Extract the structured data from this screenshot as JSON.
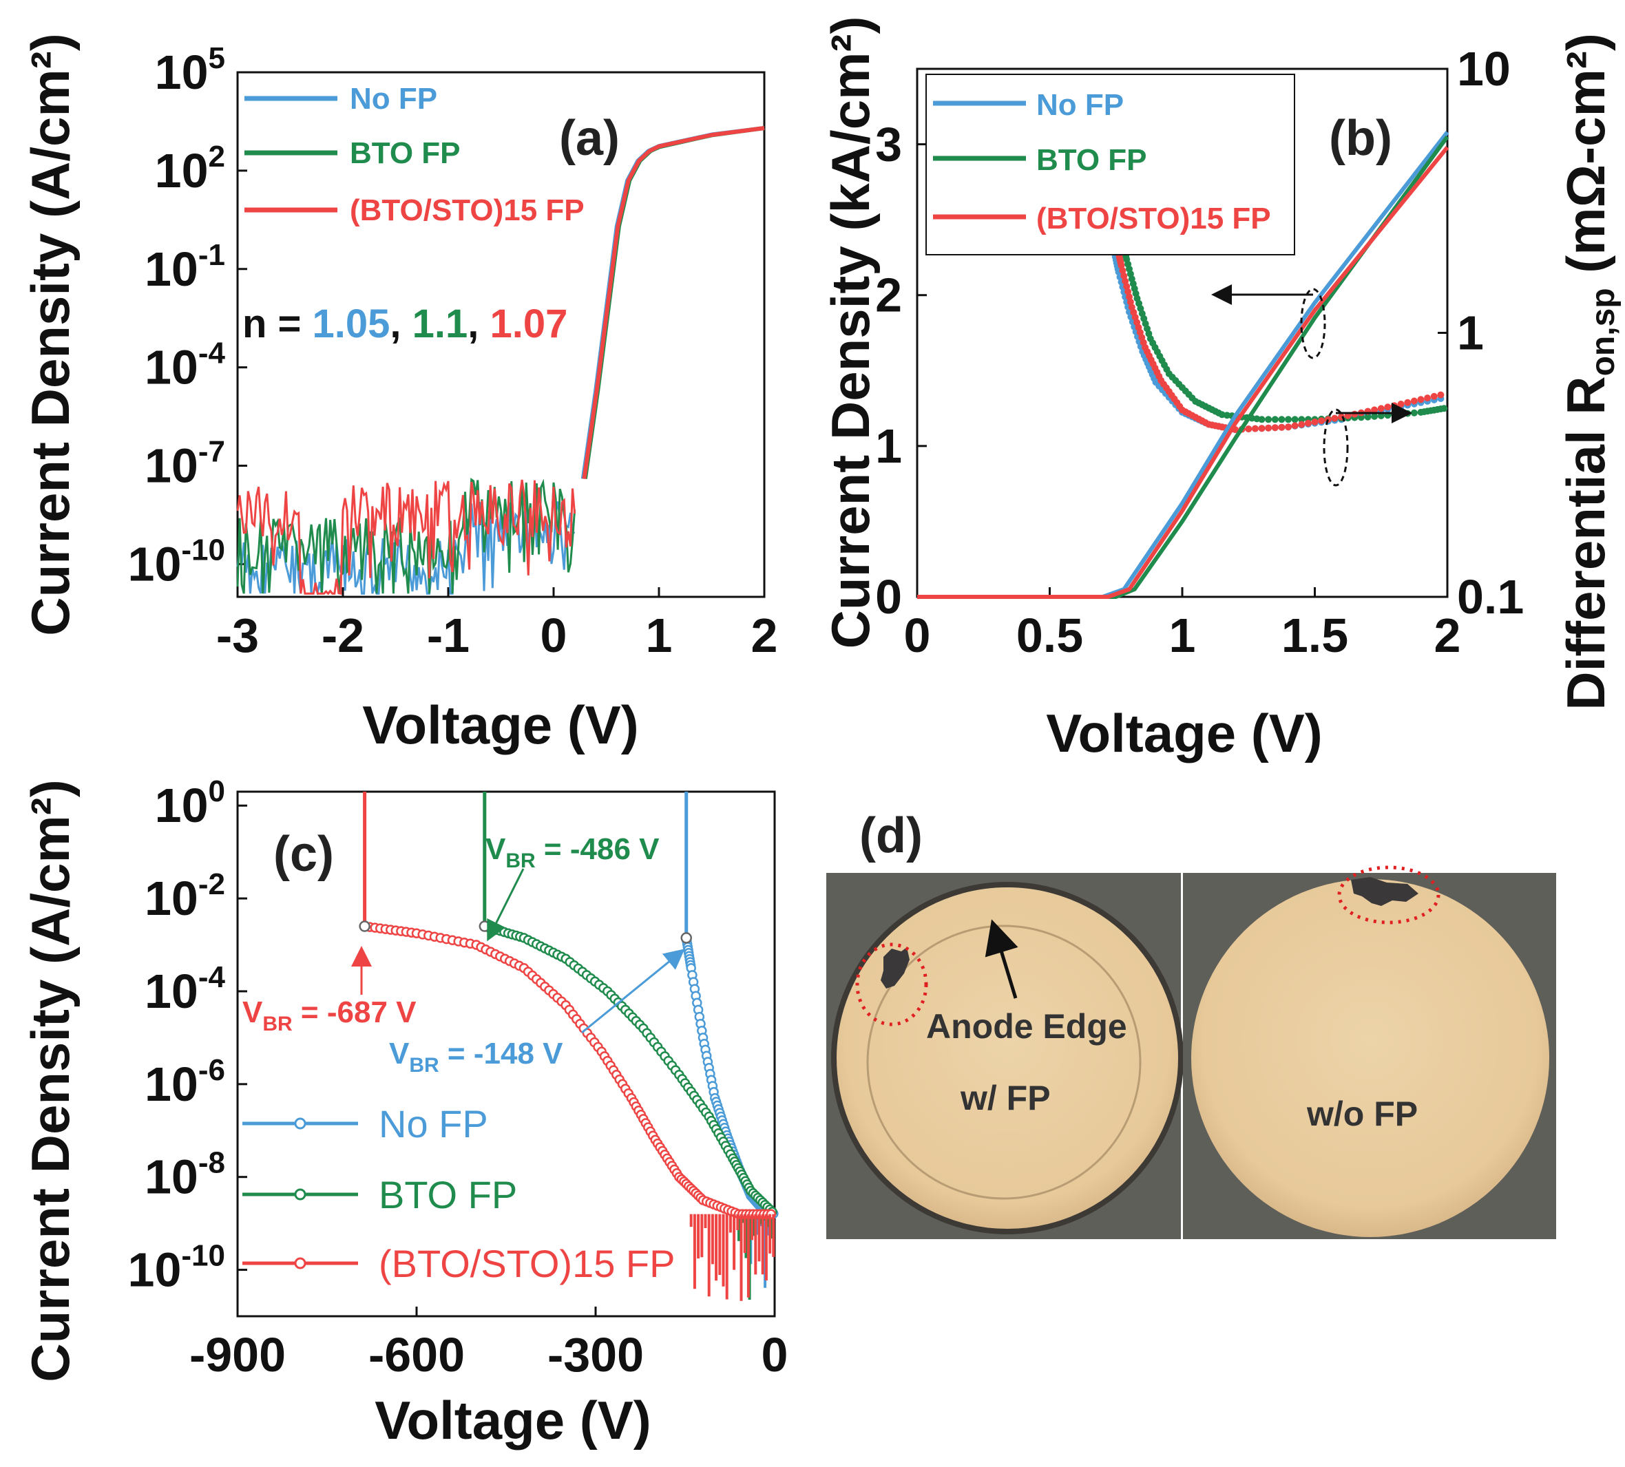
{
  "colors": {
    "blue": "#4a9bd8",
    "green": "#1f8b4c",
    "red": "#ef4444",
    "dark": "#111111"
  },
  "chart_data": [
    {
      "id": "a",
      "type": "line",
      "panel_label": "(a)",
      "xlabel": "Voltage (V)",
      "ylabel": "Current Density (A/cm²)",
      "xlim": [
        -3,
        2
      ],
      "yscale": "log",
      "ylim_exp": [
        -11,
        5
      ],
      "xticks": [
        "-3",
        "-2",
        "-1",
        "0",
        "1",
        "2"
      ],
      "yticks": [
        "10^5",
        "10^2",
        "10^-1",
        "10^-4",
        "10^-7",
        "10^-10"
      ],
      "legend": [
        "No FP",
        "BTO FP",
        "(BTO/STO)15 FP"
      ],
      "ideality_label": "n = ",
      "ideality": [
        "1.05",
        "1.1",
        "1.07"
      ],
      "ideality_sep": ", ",
      "series": [
        {
          "name": "No FP",
          "color": "blue",
          "points": [
            [
              0.28,
              -7.4
            ],
            [
              0.4,
              -4.7
            ],
            [
              0.5,
              -2.2
            ],
            [
              0.6,
              0.3
            ],
            [
              0.7,
              1.7
            ],
            [
              0.8,
              2.3
            ],
            [
              0.9,
              2.6
            ],
            [
              1.0,
              2.75
            ],
            [
              1.5,
              3.1
            ],
            [
              2.0,
              3.3
            ]
          ]
        },
        {
          "name": "BTO FP",
          "color": "green",
          "points": [
            [
              0.3,
              -7.4
            ],
            [
              0.42,
              -4.7
            ],
            [
              0.52,
              -2.2
            ],
            [
              0.62,
              0.3
            ],
            [
              0.72,
              1.7
            ],
            [
              0.82,
              2.3
            ],
            [
              0.92,
              2.6
            ],
            [
              1.0,
              2.72
            ],
            [
              1.5,
              3.08
            ],
            [
              2.0,
              3.3
            ]
          ]
        },
        {
          "name": "(BTO/STO)15 FP",
          "color": "red",
          "points": [
            [
              0.29,
              -7.4
            ],
            [
              0.41,
              -4.7
            ],
            [
              0.51,
              -2.2
            ],
            [
              0.61,
              0.3
            ],
            [
              0.71,
              1.7
            ],
            [
              0.81,
              2.3
            ],
            [
              0.91,
              2.6
            ],
            [
              1.0,
              2.74
            ],
            [
              1.5,
              3.09
            ],
            [
              2.0,
              3.3
            ]
          ]
        }
      ]
    },
    {
      "id": "b",
      "type": "line",
      "panel_label": "(b)",
      "xlabel": "Voltage (V)",
      "ylabel": "Current Density (kA/cm²)",
      "y2label": "Differential R",
      "y2label_sub": "on,sp",
      "y2label_unit": " (mΩ-cm²)",
      "xlim": [
        0,
        2
      ],
      "ylim": [
        0,
        3.5
      ],
      "y2lim": [
        0.1,
        10
      ],
      "xticks": [
        "0",
        "0.5",
        "1",
        "1.5",
        "2"
      ],
      "yticks": [
        "0",
        "1",
        "2",
        "3"
      ],
      "y2ticks": [
        "0.1",
        "1",
        "10"
      ],
      "legend": [
        "No FP",
        "BTO FP",
        "(BTO/STO)15 FP"
      ],
      "current_series": [
        {
          "name": "No FP",
          "color": "blue",
          "points": [
            [
              0,
              0
            ],
            [
              0.7,
              0
            ],
            [
              0.78,
              0.05
            ],
            [
              1.0,
              0.62
            ],
            [
              1.2,
              1.2
            ],
            [
              1.5,
              1.95
            ],
            [
              2.0,
              3.08
            ]
          ]
        },
        {
          "name": "BTO FP",
          "color": "green",
          "points": [
            [
              0,
              0
            ],
            [
              0.75,
              0
            ],
            [
              0.82,
              0.05
            ],
            [
              1.0,
              0.5
            ],
            [
              1.2,
              1.05
            ],
            [
              1.5,
              1.85
            ],
            [
              2.0,
              3.05
            ]
          ]
        },
        {
          "name": "(BTO/STO)15 FP",
          "color": "red",
          "points": [
            [
              0,
              0
            ],
            [
              0.72,
              0
            ],
            [
              0.8,
              0.05
            ],
            [
              1.0,
              0.57
            ],
            [
              1.2,
              1.15
            ],
            [
              1.5,
              1.9
            ],
            [
              2.0,
              2.98
            ]
          ]
        }
      ],
      "resistance_series": [
        {
          "name": "No FP",
          "color": "blue",
          "points": [
            [
              0.74,
              2.1
            ],
            [
              0.76,
              1.7
            ],
            [
              0.8,
              1.2
            ],
            [
              0.85,
              0.85
            ],
            [
              0.9,
              0.65
            ],
            [
              1.0,
              0.5
            ],
            [
              1.1,
              0.45
            ],
            [
              1.2,
              0.43
            ],
            [
              1.4,
              0.44
            ],
            [
              1.6,
              0.47
            ],
            [
              1.8,
              0.52
            ],
            [
              2.0,
              0.57
            ]
          ]
        },
        {
          "name": "BTO FP",
          "color": "green",
          "points": [
            [
              0.77,
              2.3
            ],
            [
              0.79,
              1.9
            ],
            [
              0.83,
              1.35
            ],
            [
              0.88,
              0.95
            ],
            [
              0.95,
              0.7
            ],
            [
              1.05,
              0.55
            ],
            [
              1.15,
              0.49
            ],
            [
              1.3,
              0.47
            ],
            [
              1.5,
              0.47
            ],
            [
              1.7,
              0.48
            ],
            [
              1.9,
              0.5
            ],
            [
              2.0,
              0.52
            ]
          ]
        },
        {
          "name": "(BTO/STO)15 FP",
          "color": "red",
          "points": [
            [
              0.75,
              2.2
            ],
            [
              0.77,
              1.8
            ],
            [
              0.81,
              1.25
            ],
            [
              0.86,
              0.88
            ],
            [
              0.92,
              0.66
            ],
            [
              1.0,
              0.51
            ],
            [
              1.1,
              0.45
            ],
            [
              1.2,
              0.43
            ],
            [
              1.4,
              0.44
            ],
            [
              1.6,
              0.48
            ],
            [
              1.8,
              0.53
            ],
            [
              2.0,
              0.59
            ]
          ]
        }
      ]
    },
    {
      "id": "c",
      "type": "line",
      "panel_label": "(c)",
      "xlabel": "Voltage (V)",
      "ylabel": "Current Density (A/cm²)",
      "xlim": [
        -900,
        0
      ],
      "yscale": "log",
      "ylim_exp": [
        -11,
        0.3
      ],
      "xticks": [
        "-900",
        "-600",
        "-300",
        "0"
      ],
      "yticks": [
        "10^0",
        "10^-2",
        "10^-4",
        "10^-6",
        "10^-8",
        "10^-10"
      ],
      "legend": [
        "No FP",
        "BTO FP",
        "(BTO/STO)15 FP"
      ],
      "annotations": [
        {
          "label": "V",
          "sub": "BR",
          "text": " = -486 V",
          "color": "green"
        },
        {
          "label": "V",
          "sub": "BR",
          "text": " = -687 V",
          "color": "red"
        },
        {
          "label": "V",
          "sub": "BR",
          "text": " = -148 V",
          "color": "blue"
        }
      ],
      "series": [
        {
          "name": "No FP",
          "color": "blue",
          "vbr": -148,
          "points": [
            [
              -148,
              -2.85
            ],
            [
              -140,
              -3.5
            ],
            [
              -120,
              -5.0
            ],
            [
              -100,
              -6.3
            ],
            [
              -80,
              -7.1
            ],
            [
              -60,
              -7.8
            ],
            [
              -40,
              -8.4
            ],
            [
              -20,
              -8.7
            ],
            [
              0,
              -8.8
            ]
          ]
        },
        {
          "name": "BTO FP",
          "color": "green",
          "vbr": -486,
          "points": [
            [
              -486,
              -2.6
            ],
            [
              -420,
              -2.85
            ],
            [
              -350,
              -3.3
            ],
            [
              -280,
              -4.0
            ],
            [
              -220,
              -4.8
            ],
            [
              -160,
              -5.8
            ],
            [
              -110,
              -6.7
            ],
            [
              -70,
              -7.6
            ],
            [
              -40,
              -8.3
            ],
            [
              0,
              -8.8
            ]
          ]
        },
        {
          "name": "(BTO/STO)15 FP",
          "color": "red",
          "vbr": -687,
          "points": [
            [
              -687,
              -2.6
            ],
            [
              -600,
              -2.75
            ],
            [
              -500,
              -3.0
            ],
            [
              -420,
              -3.5
            ],
            [
              -350,
              -4.3
            ],
            [
              -290,
              -5.3
            ],
            [
              -240,
              -6.3
            ],
            [
              -200,
              -7.2
            ],
            [
              -160,
              -8.0
            ],
            [
              -120,
              -8.5
            ],
            [
              -60,
              -8.8
            ],
            [
              0,
              -8.8
            ]
          ]
        }
      ]
    }
  ],
  "panel_d": {
    "label": "(d)",
    "left_caption": "w/ FP",
    "right_caption": "w/o FP",
    "arrow_label": "Anode Edge"
  }
}
